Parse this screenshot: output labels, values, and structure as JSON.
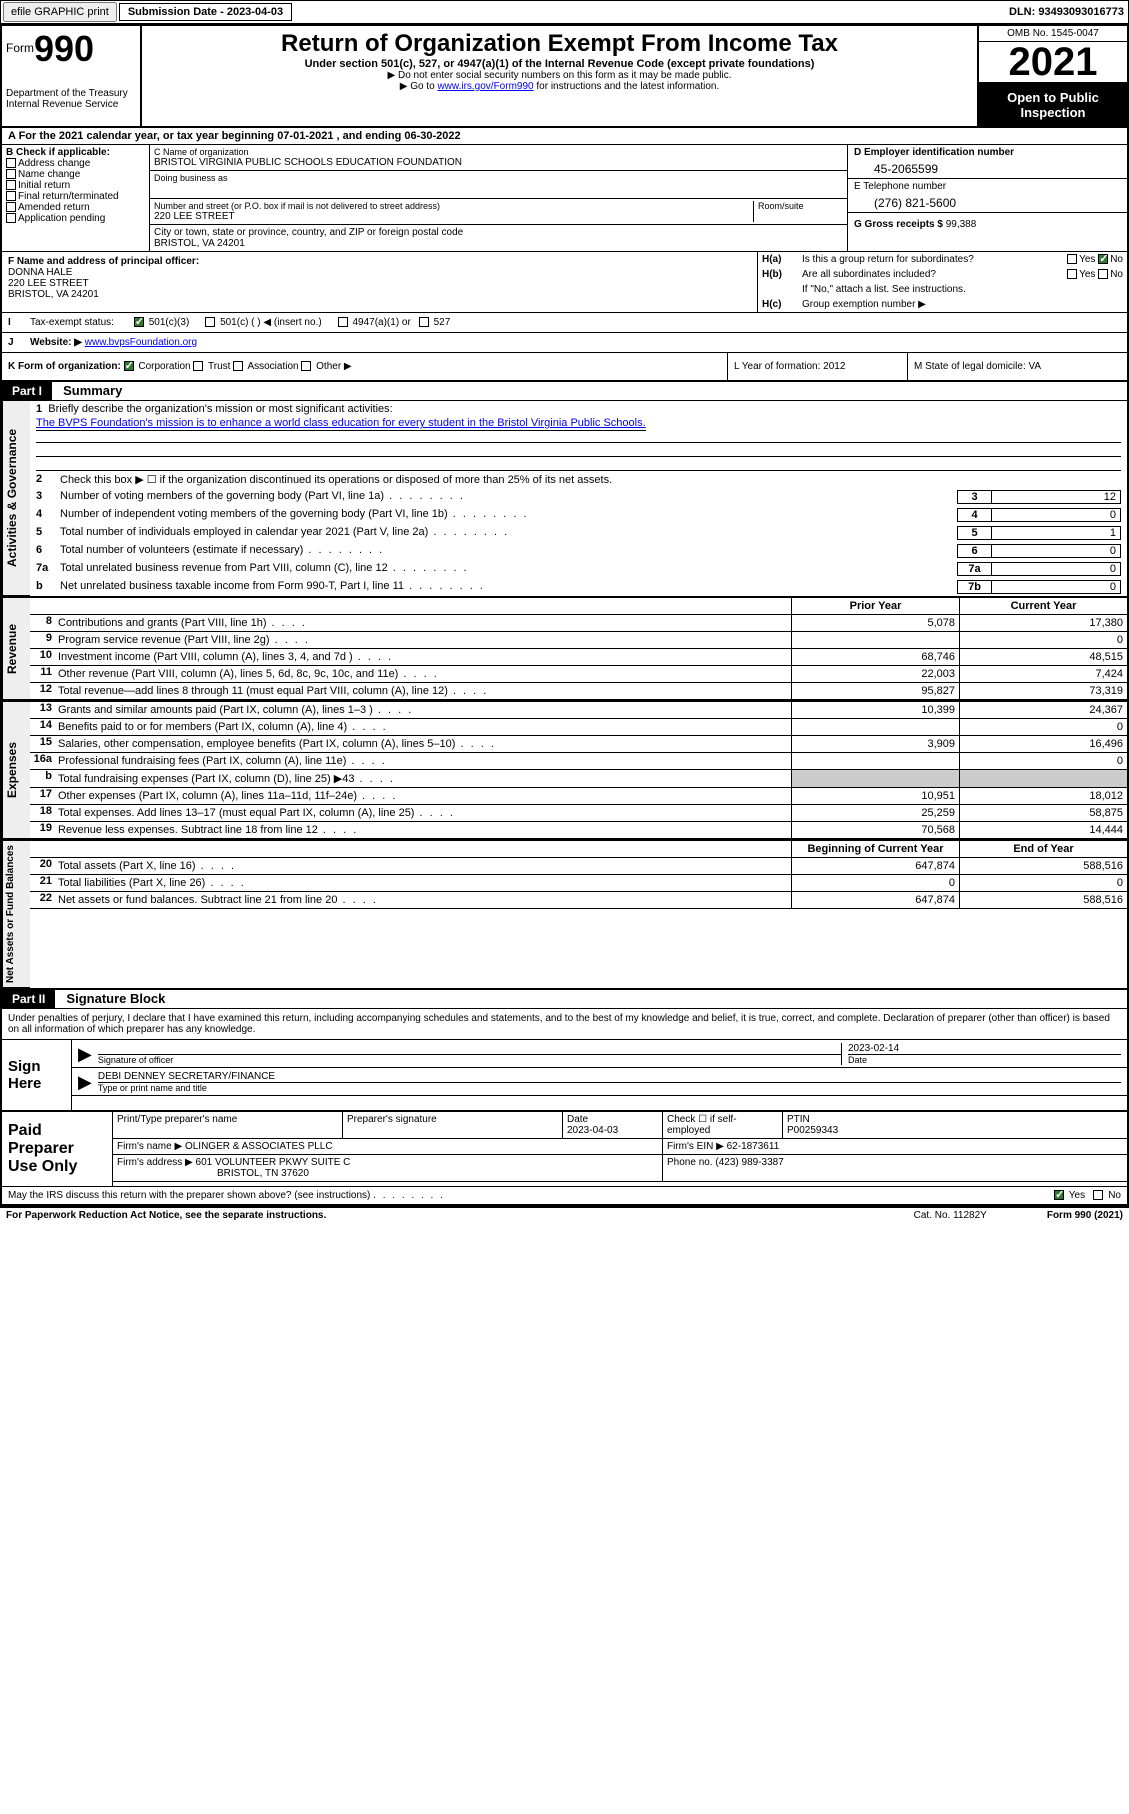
{
  "topbar": {
    "efile_btn": "efile GRAPHIC print",
    "sub_date_label": "Submission Date - 2023-04-03",
    "dln": "DLN: 93493093016773"
  },
  "header": {
    "form_label": "Form",
    "form_num": "990",
    "dept": "Department of the Treasury Internal Revenue Service",
    "title": "Return of Organization Exempt From Income Tax",
    "subtitle": "Under section 501(c), 527, or 4947(a)(1) of the Internal Revenue Code (except private foundations)",
    "note1": "▶ Do not enter social security numbers on this form as it may be made public.",
    "note2_pre": "▶ Go to ",
    "note2_link": "www.irs.gov/Form990",
    "note2_post": " for instructions and the latest information.",
    "omb": "OMB No. 1545-0047",
    "year": "2021",
    "open": "Open to Public Inspection"
  },
  "row_a": "A For the 2021 calendar year, or tax year beginning 07-01-2021   , and ending 06-30-2022",
  "section_b": {
    "label": "B Check if applicable:",
    "items": [
      "Address change",
      "Name change",
      "Initial return",
      "Final return/terminated",
      "Amended return",
      "Application pending"
    ]
  },
  "section_c": {
    "name_label": "C Name of organization",
    "name": "BRISTOL VIRGINIA PUBLIC SCHOOLS EDUCATION FOUNDATION",
    "dba_label": "Doing business as",
    "addr_label": "Number and street (or P.O. box if mail is not delivered to street address)",
    "room_label": "Room/suite",
    "addr": "220 LEE STREET",
    "city_label": "City or town, state or province, country, and ZIP or foreign postal code",
    "city": "BRISTOL, VA  24201"
  },
  "section_de": {
    "d_label": "D Employer identification number",
    "ein": "45-2065599",
    "e_label": "E Telephone number",
    "phone": "(276) 821-5600",
    "g_label": "G Gross receipts $",
    "gross": "99,388"
  },
  "section_f": {
    "label": "F Name and address of principal officer:",
    "name": "DONNA HALE",
    "addr1": "220 LEE STREET",
    "addr2": "BRISTOL, VA  24201"
  },
  "section_h": {
    "ha_label": "H(a)",
    "ha_text": "Is this a group return for subordinates?",
    "hb_label": "H(b)",
    "hb_text": "Are all subordinates included?",
    "hb_note": "If \"No,\" attach a list. See instructions.",
    "hc_label": "H(c)",
    "hc_text": "Group exemption number ▶",
    "yes": "Yes",
    "no": "No"
  },
  "row_i": {
    "label": "I",
    "text": "Tax-exempt status:",
    "opt1": "501(c)(3)",
    "opt2": "501(c) (   ) ◀ (insert no.)",
    "opt3": "4947(a)(1) or",
    "opt4": "527"
  },
  "row_j": {
    "label": "J",
    "text": "Website: ▶",
    "url": "www.bvpsFoundation.org"
  },
  "row_k": {
    "label": "K Form of organization:",
    "opts": [
      "Corporation",
      "Trust",
      "Association",
      "Other ▶"
    ],
    "l_label": "L Year of formation: 2012",
    "m_label": "M State of legal domicile: VA"
  },
  "part1": {
    "tag": "Part I",
    "title": "Summary"
  },
  "summary": {
    "gov_label": "Activities & Governance",
    "line1_label": "Briefly describe the organization's mission or most significant activities:",
    "mission": "The BVPS Foundation's mission is to enhance a world class education for every student in the Bristol Virginia Public Schools.",
    "line2": "Check this box ▶ ☐  if the organization discontinued its operations or disposed of more than 25% of its net assets.",
    "lines": [
      {
        "n": "3",
        "t": "Number of voting members of the governing body (Part VI, line 1a)",
        "box": "3",
        "v": "12"
      },
      {
        "n": "4",
        "t": "Number of independent voting members of the governing body (Part VI, line 1b)",
        "box": "4",
        "v": "0"
      },
      {
        "n": "5",
        "t": "Total number of individuals employed in calendar year 2021 (Part V, line 2a)",
        "box": "5",
        "v": "1"
      },
      {
        "n": "6",
        "t": "Total number of volunteers (estimate if necessary)",
        "box": "6",
        "v": "0"
      },
      {
        "n": "7a",
        "t": "Total unrelated business revenue from Part VIII, column (C), line 12",
        "box": "7a",
        "v": "0"
      },
      {
        "n": "b",
        "t": "Net unrelated business taxable income from Form 990-T, Part I, line 11",
        "box": "7b",
        "v": "0"
      }
    ]
  },
  "revenue": {
    "tab": "Revenue",
    "prior_hdr": "Prior Year",
    "curr_hdr": "Current Year",
    "rows": [
      {
        "n": "8",
        "t": "Contributions and grants (Part VIII, line 1h)",
        "p": "5,078",
        "c": "17,380"
      },
      {
        "n": "9",
        "t": "Program service revenue (Part VIII, line 2g)",
        "p": "",
        "c": "0"
      },
      {
        "n": "10",
        "t": "Investment income (Part VIII, column (A), lines 3, 4, and 7d )",
        "p": "68,746",
        "c": "48,515"
      },
      {
        "n": "11",
        "t": "Other revenue (Part VIII, column (A), lines 5, 6d, 8c, 9c, 10c, and 11e)",
        "p": "22,003",
        "c": "7,424"
      },
      {
        "n": "12",
        "t": "Total revenue—add lines 8 through 11 (must equal Part VIII, column (A), line 12)",
        "p": "95,827",
        "c": "73,319"
      }
    ]
  },
  "expenses": {
    "tab": "Expenses",
    "rows": [
      {
        "n": "13",
        "t": "Grants and similar amounts paid (Part IX, column (A), lines 1–3 )",
        "p": "10,399",
        "c": "24,367"
      },
      {
        "n": "14",
        "t": "Benefits paid to or for members (Part IX, column (A), line 4)",
        "p": "",
        "c": "0"
      },
      {
        "n": "15",
        "t": "Salaries, other compensation, employee benefits (Part IX, column (A), lines 5–10)",
        "p": "3,909",
        "c": "16,496"
      },
      {
        "n": "16a",
        "t": "Professional fundraising fees (Part IX, column (A), line 11e)",
        "p": "",
        "c": "0"
      },
      {
        "n": "b",
        "t": "Total fundraising expenses (Part IX, column (D), line 25) ▶43",
        "p": "",
        "c": "",
        "gray": true
      },
      {
        "n": "17",
        "t": "Other expenses (Part IX, column (A), lines 11a–11d, 11f–24e)",
        "p": "10,951",
        "c": "18,012"
      },
      {
        "n": "18",
        "t": "Total expenses. Add lines 13–17 (must equal Part IX, column (A), line 25)",
        "p": "25,259",
        "c": "58,875"
      },
      {
        "n": "19",
        "t": "Revenue less expenses. Subtract line 18 from line 12",
        "p": "70,568",
        "c": "14,444"
      }
    ]
  },
  "netassets": {
    "tab": "Net Assets or Fund Balances",
    "begin_hdr": "Beginning of Current Year",
    "end_hdr": "End of Year",
    "rows": [
      {
        "n": "20",
        "t": "Total assets (Part X, line 16)",
        "p": "647,874",
        "c": "588,516"
      },
      {
        "n": "21",
        "t": "Total liabilities (Part X, line 26)",
        "p": "0",
        "c": "0"
      },
      {
        "n": "22",
        "t": "Net assets or fund balances. Subtract line 21 from line 20",
        "p": "647,874",
        "c": "588,516"
      }
    ]
  },
  "part2": {
    "tag": "Part II",
    "title": "Signature Block",
    "intro": "Under penalties of perjury, I declare that I have examined this return, including accompanying schedules and statements, and to the best of my knowledge and belief, it is true, correct, and complete. Declaration of preparer (other than officer) is based on all information of which preparer has any knowledge.",
    "sign_here": "Sign Here",
    "sig_officer": "Signature of officer",
    "sig_date": "2023-02-14",
    "date_lbl": "Date",
    "officer_name": "DEBI DENNEY  SECRETARY/FINANCE",
    "type_name": "Type or print name and title"
  },
  "preparer": {
    "label": "Paid Preparer Use Only",
    "print_name": "Print/Type preparer's name",
    "sig": "Preparer's signature",
    "date_lbl": "Date",
    "date": "2023-04-03",
    "check_lbl": "Check ☐ if self-employed",
    "ptin_lbl": "PTIN",
    "ptin": "P00259343",
    "firm_name_lbl": "Firm's name      ▶",
    "firm_name": "OLINGER & ASSOCIATES PLLC",
    "firm_ein_lbl": "Firm's EIN ▶",
    "firm_ein": "62-1873611",
    "firm_addr_lbl": "Firm's address ▶",
    "firm_addr1": "601 VOLUNTEER PKWY SUITE C",
    "firm_addr2": "BRISTOL, TN  37620",
    "phone_lbl": "Phone no.",
    "phone": "(423) 989-3387"
  },
  "footer": {
    "discuss": "May the IRS discuss this return with the preparer shown above? (see instructions)",
    "yes": "Yes",
    "no": "No",
    "paperwork": "For Paperwork Reduction Act Notice, see the separate instructions.",
    "cat": "Cat. No. 11282Y",
    "form": "Form 990 (2021)"
  },
  "colors": {
    "link": "#0000ff",
    "black": "#000000",
    "check_green": "#2f7a2f",
    "gray_fill": "#cccccc",
    "tab_bg": "#eeeeee"
  }
}
